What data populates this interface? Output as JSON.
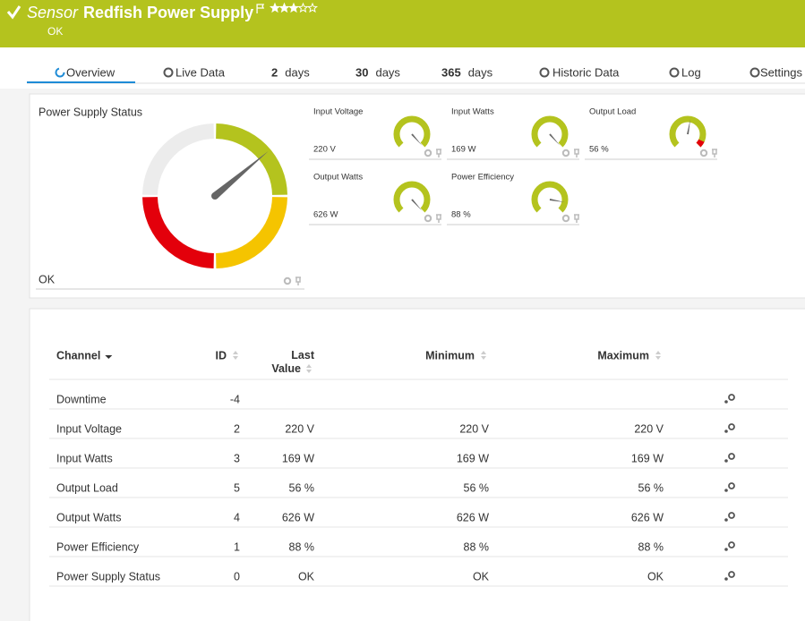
{
  "header": {
    "prefix": "Sensor",
    "title": "Redfish Power Supply",
    "status": "OK"
  },
  "tabs": [
    {
      "label": "Overview"
    },
    {
      "label": "Live Data"
    },
    {
      "number": "2",
      "label": "days"
    },
    {
      "number": "30",
      "label": "days"
    },
    {
      "number": "365",
      "label": "days"
    },
    {
      "label": "Historic Data"
    },
    {
      "label": "Log"
    },
    {
      "label": "Settings"
    }
  ],
  "main_gauge": {
    "title": "Power Supply Status",
    "value": "OK"
  },
  "gauges": [
    {
      "label": "Input Voltage",
      "value": "220 V"
    },
    {
      "label": "Input Watts",
      "value": "169 W"
    },
    {
      "label": "Output Load",
      "value": "56 %"
    },
    {
      "label": "Output Watts",
      "value": "626 W"
    },
    {
      "label": "Power Efficiency",
      "value": "88 %"
    }
  ],
  "table": {
    "columns": {
      "channel": "Channel",
      "id": "ID",
      "last": "Last Value",
      "min": "Minimum",
      "max": "Maximum"
    },
    "rows": [
      {
        "channel": "Downtime",
        "id": -4
      },
      {
        "channel": "Input Voltage",
        "id": 2,
        "last": "220 V",
        "min": "220 V",
        "max": "220 V"
      },
      {
        "channel": "Input Watts",
        "id": 3,
        "last": "169 W",
        "min": "169 W",
        "max": "169 W"
      },
      {
        "channel": "Output Load",
        "id": 5,
        "last": "56 %",
        "min": "56 %",
        "max": "56 %"
      },
      {
        "channel": "Output Watts",
        "id": 4,
        "last": "626 W",
        "min": "626 W",
        "max": "626 W"
      },
      {
        "channel": "Power Efficiency",
        "id": 1,
        "last": "88 %",
        "min": "88 %",
        "max": "88 %"
      },
      {
        "channel": "Power Supply Status",
        "id": 0,
        "last": "OK",
        "min": "OK",
        "max": "OK"
      }
    ]
  }
}
